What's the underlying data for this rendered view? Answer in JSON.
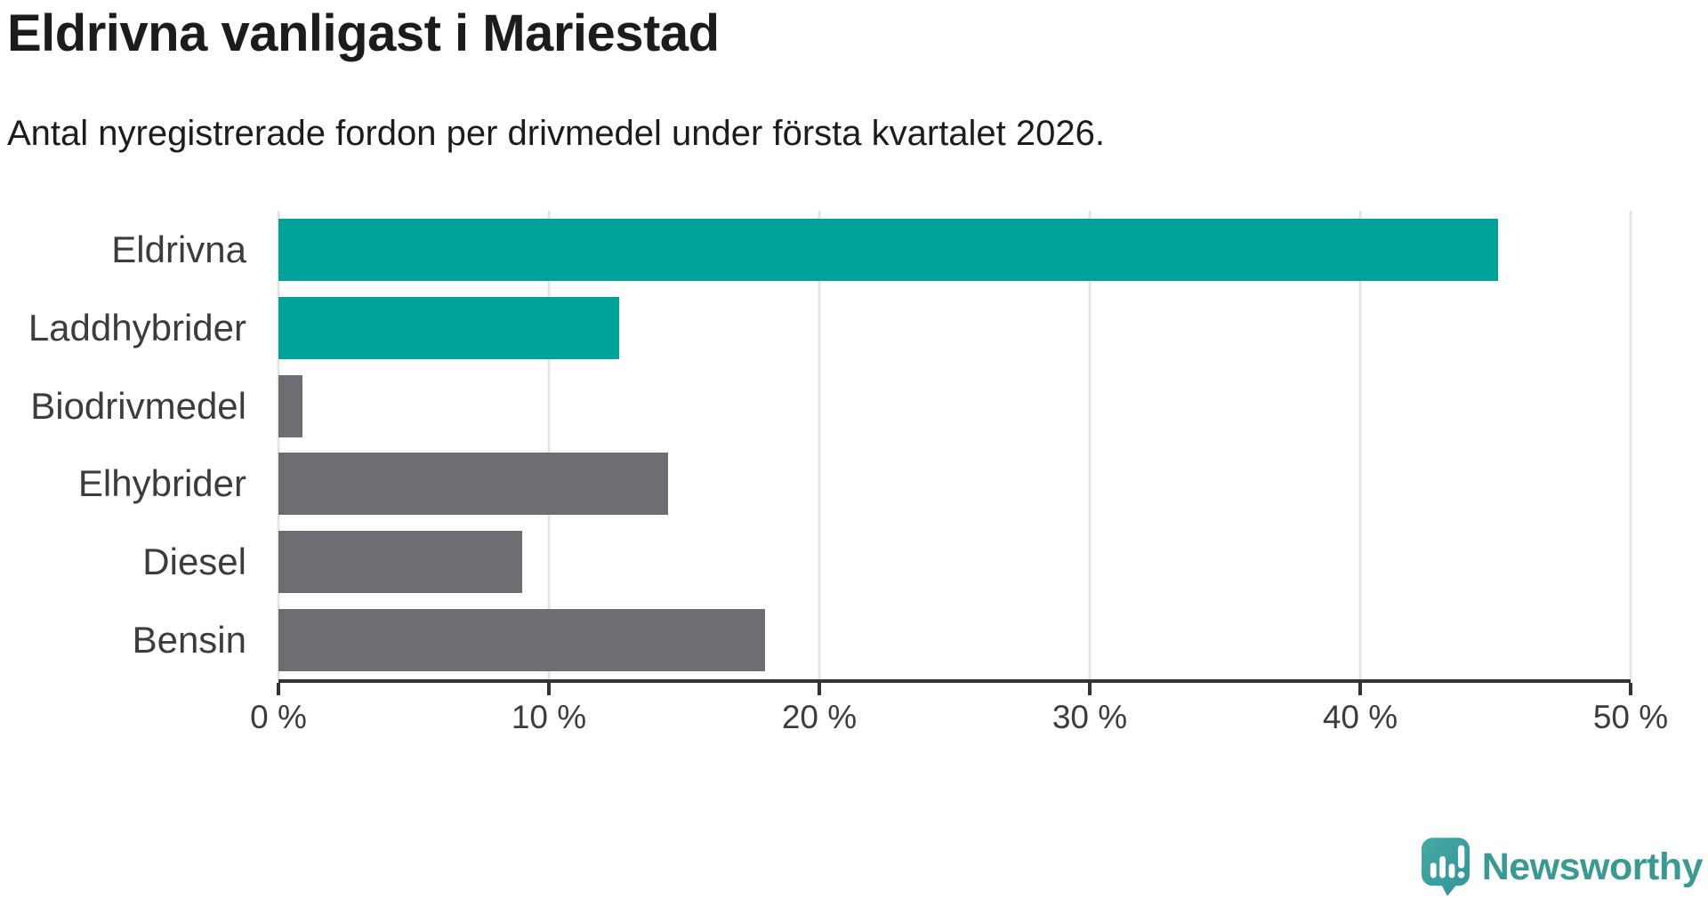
{
  "header": {
    "title": "Eldrivna vanligast i Mariestad",
    "subtitle": "Antal nyregistrerade fordon per drivmedel under första kvartalet 2026."
  },
  "chart_data": {
    "type": "bar",
    "orientation": "horizontal",
    "title": "Eldrivna vanligast i Mariestad",
    "subtitle": "Antal nyregistrerade fordon per drivmedel under första kvartalet 2026.",
    "categories": [
      "Eldrivna",
      "Laddhybrider",
      "Biodrivmedel",
      "Elhybrider",
      "Diesel",
      "Bensin"
    ],
    "values": [
      45.1,
      12.6,
      0.9,
      14.4,
      9.0,
      18.0
    ],
    "unit": "%",
    "xlim": [
      0,
      50
    ],
    "x_ticks": [
      0,
      10,
      20,
      30,
      40,
      50
    ],
    "x_tick_labels": [
      "0 %",
      "10 %",
      "20 %",
      "30 %",
      "40 %",
      "50 %"
    ],
    "bar_colors": [
      "#00a29a",
      "#00a29a",
      "#6d6d73",
      "#6d6d73",
      "#6d6d73",
      "#6d6d73"
    ],
    "highlight_color": "#00a29a",
    "default_color": "#6d6d73",
    "gridline_color": "#e4e4e4",
    "axis_color": "#333333",
    "grid": true,
    "legend_position": "none"
  },
  "footer": {
    "brand": "Newsworthy",
    "logo_icon": "newsworthy-speech-bubble-chart-icon",
    "brand_color": "#3a9a93",
    "icon_color": "#3ba29b"
  }
}
